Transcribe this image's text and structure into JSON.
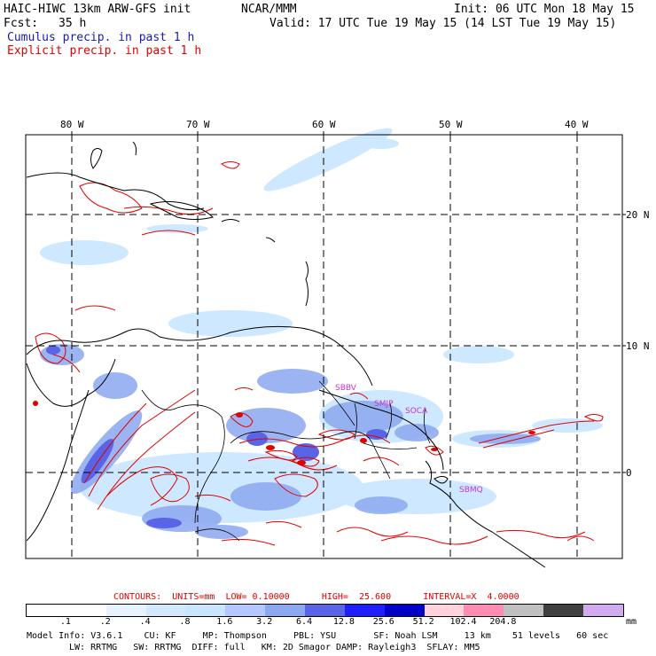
{
  "header": {
    "model_line": "HAIC-HIWC 13km ARW-GFS init",
    "org": "NCAR/MMM",
    "init": "Init: 06 UTC Mon 18 May 15",
    "fcst_label": "Fcst:",
    "fcst_value": "35 h",
    "valid": "Valid: 17 UTC Tue 19 May 15 (14 LST Tue 19 May 15)",
    "cumulus": "Cumulus precip. in past 1 h",
    "explicit": "Explicit precip. in past 1 h"
  },
  "map": {
    "longitudes": [
      "80 W",
      "70 W",
      "60 W",
      "50 W",
      "40 W"
    ],
    "latitudes": [
      "20 N",
      "10 N",
      "0"
    ],
    "station_labels": [
      "SBBV",
      "SMJP",
      "SOCA",
      "SBMQ"
    ],
    "colors": {
      "coast": "#000000",
      "explicit": "#e00000",
      "station": "#cc33cc",
      "cumulus_light": "#c8e6ff",
      "cumulus_mid": "#8ca8f0",
      "cumulus_dark": "#5a64e6"
    }
  },
  "contours": {
    "label": "CONTOURS:",
    "units": "UNITS=mm",
    "low": "LOW= 0.10000",
    "high": "HIGH=  25.600",
    "interval": "INTERVAL=X  4.0000"
  },
  "colorbar": {
    "colors": [
      "#ffffff",
      "#ffffff",
      "#e6f2ff",
      "#d2e8ff",
      "#c8e6ff",
      "#b4c8ff",
      "#8ca8f0",
      "#5a64e6",
      "#1e1eff",
      "#0000c8",
      "#ffd2dc",
      "#ff8cb4",
      "#c0c0c0",
      "#404040",
      "#d2aaf0"
    ],
    "labels": [
      ".1",
      ".2",
      ".4",
      ".8",
      "1.6",
      "3.2",
      "6.4",
      "12.8",
      "25.6",
      "51.2",
      "102.4",
      "204.8"
    ],
    "units": "mm"
  },
  "model_info": {
    "line1": "Model Info: V3.6.1    CU: KF     MP: Thompson     PBL: YSU       SF: Noah LSM     13 km    51 levels   60 sec",
    "line2": "LW: RRTMG   SW: RRTMG  DIFF: full   KM: 2D Smagor DAMP: Rayleigh3  SFLAY: MM5"
  }
}
